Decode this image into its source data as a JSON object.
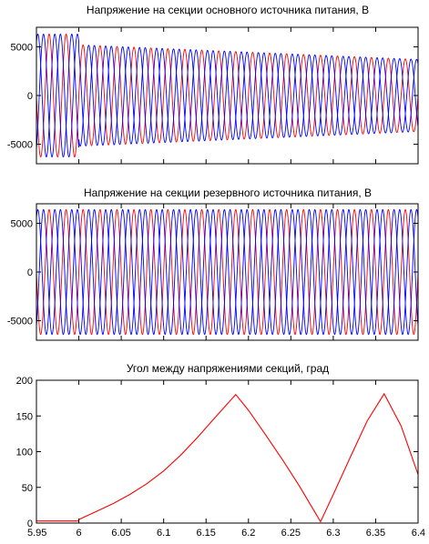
{
  "chart_data": [
    {
      "type": "line",
      "title": "Напряжение на секции основного источника питания, В",
      "xlim": [
        5.95,
        6.4
      ],
      "ylim": [
        -7000,
        7000
      ],
      "yticks": [
        -5000,
        0,
        5000
      ],
      "ytick_labels": [
        "-5000",
        "0",
        "5000"
      ],
      "xtick_labels_shown": false,
      "grid": false,
      "signal": {
        "frequency_hz": 50,
        "phase_count": 3,
        "amplitude_before_switch": 6300,
        "switch_time": 6.0,
        "amplitude_after_switch": 5200,
        "amplitude_at_end": 3700
      },
      "series": [
        {
          "color": "#ff0000",
          "phase_deg": 0
        },
        {
          "color": "#0000ff",
          "phase_deg": -120
        },
        {
          "color": "#0000ff",
          "phase_deg": 120
        }
      ]
    },
    {
      "type": "line",
      "title": "Напряжение на секции резервного источника питания, В",
      "xlim": [
        5.95,
        6.4
      ],
      "ylim": [
        -7000,
        7000
      ],
      "yticks": [
        -5000,
        0,
        5000
      ],
      "ytick_labels": [
        "-5000",
        "0",
        "5000"
      ],
      "xtick_labels_shown": false,
      "grid": false,
      "signal": {
        "frequency_hz": 50,
        "phase_count": 3,
        "amplitude": 6400
      },
      "series": [
        {
          "color": "#ff0000",
          "phase_deg": 0
        },
        {
          "color": "#0000ff",
          "phase_deg": -120
        },
        {
          "color": "#0000ff",
          "phase_deg": 120
        }
      ]
    },
    {
      "type": "line",
      "title": "Угол между напряжениями секций, град",
      "xlim": [
        5.95,
        6.4
      ],
      "ylim": [
        0,
        200
      ],
      "xticks": [
        5.95,
        6,
        6.05,
        6.1,
        6.15,
        6.2,
        6.25,
        6.3,
        6.35,
        6.4
      ],
      "xtick_labels": [
        "5.95",
        "6",
        "6.05",
        "6.1",
        "6.15",
        "6.2",
        "6.25",
        "6.3",
        "6.35",
        "6.4"
      ],
      "yticks": [
        0,
        50,
        100,
        150,
        200
      ],
      "ytick_labels": [
        "0",
        "50",
        "100",
        "150",
        "200"
      ],
      "grid": false,
      "series": [
        {
          "color": "#ff0000",
          "x": [
            5.95,
            6.0,
            6.0,
            6.02,
            6.04,
            6.06,
            6.08,
            6.1,
            6.12,
            6.14,
            6.16,
            6.185,
            6.2,
            6.22,
            6.24,
            6.26,
            6.285,
            6.3,
            6.32,
            6.34,
            6.36,
            6.38,
            6.4
          ],
          "y": [
            3,
            3,
            5,
            16,
            27,
            40,
            55,
            73,
            95,
            120,
            147,
            180,
            158,
            124,
            89,
            52,
            2,
            40,
            92,
            143,
            181,
            136,
            68
          ]
        }
      ]
    }
  ]
}
